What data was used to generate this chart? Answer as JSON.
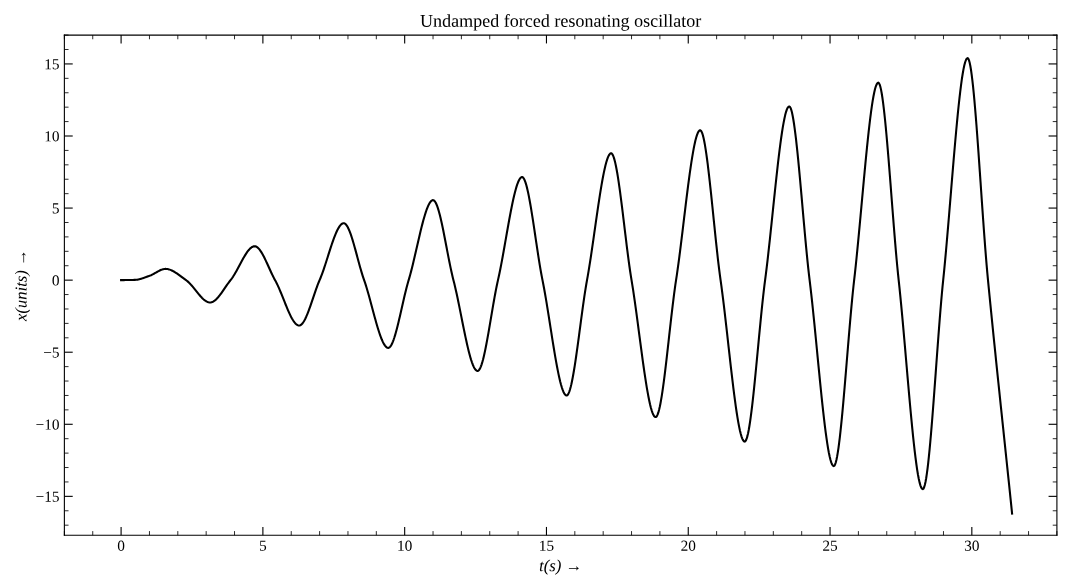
{
  "chart_data": {
    "type": "line",
    "title": "Undamped forced resonating oscillator",
    "xlabel": "t(s) →",
    "ylabel": "x(units) →",
    "x": [
      0,
      0.5,
      1.0,
      1.57,
      2.29,
      3.14,
      3.86,
      4.71,
      5.43,
      6.28,
      7.0,
      7.85,
      8.57,
      9.42,
      10.14,
      11.0,
      11.72,
      12.57,
      13.29,
      14.14,
      14.86,
      15.71,
      16.43,
      17.28,
      18.0,
      18.85,
      19.57,
      20.42,
      21.14,
      21.99,
      22.71,
      23.56,
      24.28,
      25.13,
      25.85,
      26.7,
      27.42,
      28.27,
      28.99,
      29.85,
      30.57,
      31.42
    ],
    "series": [
      {
        "color": "#000000",
        "values": [
          0,
          0.02,
          0.3,
          0.78,
          0,
          -1.55,
          0,
          2.35,
          0,
          -3.15,
          0,
          3.95,
          0,
          -4.7,
          0,
          5.55,
          0,
          -6.3,
          0,
          7.15,
          0,
          -8.0,
          0,
          8.8,
          0,
          -9.5,
          0,
          10.4,
          0,
          -11.2,
          0,
          12.05,
          0,
          -12.9,
          0,
          13.7,
          0,
          -14.5,
          0,
          15.4,
          0,
          -16.2
        ]
      }
    ],
    "xlim": [
      -2,
      33
    ],
    "ylim": [
      -17.7,
      17
    ],
    "xticks": [
      0,
      5,
      10,
      15,
      20,
      25,
      30
    ],
    "yticks": [
      -15,
      -10,
      -5,
      0,
      5,
      10,
      15
    ],
    "grid": false,
    "line_style": "solid"
  }
}
